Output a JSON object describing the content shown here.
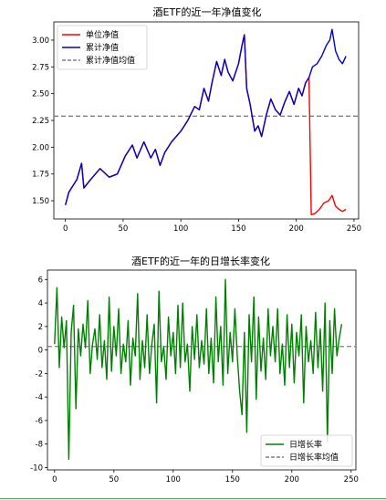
{
  "chart_data": [
    {
      "type": "line",
      "title": "酒ETF的近一年净值变化",
      "xlabel": "",
      "ylabel": "",
      "xlim": [
        -10,
        254
      ],
      "ylim": [
        1.33,
        3.17
      ],
      "x_ticks": [
        0,
        50,
        100,
        150,
        200,
        250
      ],
      "y_ticks": [
        1.5,
        1.75,
        2.0,
        2.25,
        2.5,
        2.75,
        3.0
      ],
      "legend_position": "upper-left",
      "grid": false,
      "hline": {
        "name": "累计净值均值",
        "value": 2.29,
        "color": "#808080",
        "dash": true
      },
      "series": [
        {
          "name": "单位净值",
          "color": "#ff0000",
          "keypoints": [
            [
              0,
              1.46
            ],
            [
              3,
              1.58
            ],
            [
              10,
              1.7
            ],
            [
              14,
              1.85
            ],
            [
              16,
              1.62
            ],
            [
              22,
              1.7
            ],
            [
              30,
              1.8
            ],
            [
              38,
              1.72
            ],
            [
              45,
              1.75
            ],
            [
              52,
              1.92
            ],
            [
              58,
              2.02
            ],
            [
              62,
              1.9
            ],
            [
              68,
              2.05
            ],
            [
              74,
              1.9
            ],
            [
              78,
              1.98
            ],
            [
              82,
              1.83
            ],
            [
              86,
              1.95
            ],
            [
              92,
              2.05
            ],
            [
              100,
              2.15
            ],
            [
              106,
              2.25
            ],
            [
              112,
              2.38
            ],
            [
              116,
              2.35
            ],
            [
              120,
              2.55
            ],
            [
              124,
              2.43
            ],
            [
              127,
              2.6
            ],
            [
              131,
              2.8
            ],
            [
              135,
              2.67
            ],
            [
              138,
              2.82
            ],
            [
              141,
              2.7
            ],
            [
              145,
              2.62
            ],
            [
              150,
              2.78
            ],
            [
              153,
              2.95
            ],
            [
              155,
              3.05
            ],
            [
              157,
              2.55
            ],
            [
              160,
              2.4
            ],
            [
              164,
              2.15
            ],
            [
              167,
              2.2
            ],
            [
              170,
              2.1
            ],
            [
              174,
              2.3
            ],
            [
              178,
              2.45
            ],
            [
              182,
              2.35
            ],
            [
              186,
              2.3
            ],
            [
              190,
              2.42
            ],
            [
              194,
              2.52
            ],
            [
              198,
              2.4
            ],
            [
              202,
              2.55
            ],
            [
              205,
              2.48
            ],
            [
              208,
              2.6
            ],
            [
              211,
              2.65
            ],
            [
              213,
              1.37
            ],
            [
              216,
              1.38
            ],
            [
              220,
              1.42
            ],
            [
              224,
              1.48
            ],
            [
              228,
              1.5
            ],
            [
              231,
              1.55
            ],
            [
              234,
              1.45
            ],
            [
              237,
              1.42
            ],
            [
              240,
              1.4
            ],
            [
              243,
              1.42
            ]
          ]
        },
        {
          "name": "累计净值",
          "color": "#0000cd",
          "keypoints": [
            [
              0,
              1.46
            ],
            [
              3,
              1.58
            ],
            [
              10,
              1.7
            ],
            [
              14,
              1.85
            ],
            [
              16,
              1.62
            ],
            [
              22,
              1.7
            ],
            [
              30,
              1.8
            ],
            [
              38,
              1.72
            ],
            [
              45,
              1.75
            ],
            [
              52,
              1.92
            ],
            [
              58,
              2.02
            ],
            [
              62,
              1.9
            ],
            [
              68,
              2.05
            ],
            [
              74,
              1.9
            ],
            [
              78,
              1.98
            ],
            [
              82,
              1.83
            ],
            [
              86,
              1.95
            ],
            [
              92,
              2.05
            ],
            [
              100,
              2.15
            ],
            [
              106,
              2.25
            ],
            [
              112,
              2.38
            ],
            [
              116,
              2.35
            ],
            [
              120,
              2.55
            ],
            [
              124,
              2.43
            ],
            [
              127,
              2.6
            ],
            [
              131,
              2.8
            ],
            [
              135,
              2.67
            ],
            [
              138,
              2.82
            ],
            [
              141,
              2.7
            ],
            [
              145,
              2.62
            ],
            [
              150,
              2.78
            ],
            [
              153,
              2.95
            ],
            [
              155,
              3.05
            ],
            [
              157,
              2.55
            ],
            [
              160,
              2.4
            ],
            [
              164,
              2.15
            ],
            [
              167,
              2.2
            ],
            [
              170,
              2.1
            ],
            [
              174,
              2.3
            ],
            [
              178,
              2.45
            ],
            [
              182,
              2.35
            ],
            [
              186,
              2.3
            ],
            [
              190,
              2.42
            ],
            [
              194,
              2.52
            ],
            [
              198,
              2.4
            ],
            [
              202,
              2.55
            ],
            [
              205,
              2.48
            ],
            [
              208,
              2.6
            ],
            [
              211,
              2.65
            ],
            [
              214,
              2.75
            ],
            [
              218,
              2.78
            ],
            [
              222,
              2.85
            ],
            [
              226,
              2.95
            ],
            [
              229,
              3.0
            ],
            [
              231,
              3.1
            ],
            [
              234,
              2.9
            ],
            [
              237,
              2.82
            ],
            [
              240,
              2.78
            ],
            [
              243,
              2.85
            ]
          ]
        }
      ]
    },
    {
      "type": "line",
      "title": "酒ETF的近一年的日增长率变化",
      "xlabel": "",
      "ylabel": "",
      "xlim": [
        -6,
        254
      ],
      "ylim": [
        -10.2,
        6.8
      ],
      "x_ticks": [
        0,
        50,
        100,
        150,
        200,
        250
      ],
      "y_ticks": [
        -10,
        -8,
        -6,
        -4,
        -2,
        0,
        2,
        4,
        6
      ],
      "legend_position": "lower-right",
      "grid": false,
      "hline": {
        "name": "日增长率均值",
        "value": 0.3,
        "color": "#808080",
        "dash": true
      },
      "series": [
        {
          "name": "日增长率",
          "color": "#008000",
          "keypoints": [
            [
              0,
              0.5
            ],
            [
              2,
              5.3
            ],
            [
              4,
              -1.5
            ],
            [
              6,
              2.8
            ],
            [
              8,
              0.2
            ],
            [
              10,
              2.5
            ],
            [
              12,
              -9.3
            ],
            [
              14,
              1.5
            ],
            [
              16,
              3.8
            ],
            [
              18,
              -5.0
            ],
            [
              20,
              1.8
            ],
            [
              22,
              -0.5
            ],
            [
              24,
              2.2
            ],
            [
              26,
              0.2
            ],
            [
              28,
              4.2
            ],
            [
              30,
              -2.0
            ],
            [
              32,
              0.5
            ],
            [
              34,
              1.8
            ],
            [
              36,
              -0.8
            ],
            [
              38,
              3.0
            ],
            [
              40,
              -1.5
            ],
            [
              42,
              0.8
            ],
            [
              44,
              -2.5
            ],
            [
              46,
              4.5
            ],
            [
              48,
              -1.8
            ],
            [
              50,
              2.0
            ],
            [
              52,
              -0.5
            ],
            [
              54,
              3.5
            ],
            [
              56,
              -2.0
            ],
            [
              58,
              0.5
            ],
            [
              60,
              -1.0
            ],
            [
              62,
              2.5
            ],
            [
              64,
              -3.0
            ],
            [
              66,
              1.0
            ],
            [
              68,
              -0.5
            ],
            [
              70,
              4.8
            ],
            [
              72,
              -2.5
            ],
            [
              74,
              0.8
            ],
            [
              76,
              -1.5
            ],
            [
              78,
              3.0
            ],
            [
              80,
              -2.0
            ],
            [
              82,
              0.5
            ],
            [
              84,
              2.2
            ],
            [
              86,
              -4.5
            ],
            [
              88,
              5.0
            ],
            [
              90,
              -1.0
            ],
            [
              92,
              0.3
            ],
            [
              94,
              -2.5
            ],
            [
              96,
              2.8
            ],
            [
              98,
              -0.5
            ],
            [
              100,
              1.5
            ],
            [
              102,
              -2.0
            ],
            [
              104,
              3.8
            ],
            [
              106,
              -1.5
            ],
            [
              108,
              4.0
            ],
            [
              110,
              -1.0
            ],
            [
              112,
              0.5
            ],
            [
              114,
              -3.5
            ],
            [
              116,
              2.0
            ],
            [
              118,
              -0.8
            ],
            [
              120,
              3.0
            ],
            [
              122,
              -1.5
            ],
            [
              124,
              0.8
            ],
            [
              126,
              -1.2
            ],
            [
              128,
              3.5
            ],
            [
              130,
              -2.0
            ],
            [
              132,
              1.0
            ],
            [
              134,
              -2.8
            ],
            [
              136,
              4.5
            ],
            [
              138,
              -1.0
            ],
            [
              140,
              2.0
            ],
            [
              142,
              -3.0
            ],
            [
              144,
              6.0
            ],
            [
              146,
              -2.0
            ],
            [
              148,
              1.5
            ],
            [
              150,
              -1.0
            ],
            [
              152,
              3.5
            ],
            [
              154,
              -0.5
            ],
            [
              156,
              -3.5
            ],
            [
              158,
              -5.5
            ],
            [
              160,
              1.5
            ],
            [
              162,
              -7.0
            ],
            [
              164,
              3.0
            ],
            [
              166,
              -1.0
            ],
            [
              168,
              4.5
            ],
            [
              170,
              -4.2
            ],
            [
              172,
              2.8
            ],
            [
              174,
              -1.8
            ],
            [
              176,
              1.0
            ],
            [
              178,
              -2.5
            ],
            [
              180,
              3.5
            ],
            [
              182,
              -0.5
            ],
            [
              184,
              2.0
            ],
            [
              186,
              -1.0
            ],
            [
              188,
              3.5
            ],
            [
              190,
              -2.0
            ],
            [
              192,
              0.5
            ],
            [
              194,
              -3.0
            ],
            [
              196,
              3.0
            ],
            [
              198,
              -1.5
            ],
            [
              200,
              2.2
            ],
            [
              202,
              -2.8
            ],
            [
              204,
              1.5
            ],
            [
              206,
              -0.5
            ],
            [
              208,
              3.0
            ],
            [
              210,
              -4.5
            ],
            [
              212,
              2.0
            ],
            [
              214,
              -1.0
            ],
            [
              216,
              0.8
            ],
            [
              218,
              -2.0
            ],
            [
              220,
              3.2
            ],
            [
              222,
              -1.5
            ],
            [
              224,
              1.8
            ],
            [
              226,
              -3.5
            ],
            [
              228,
              4.0
            ],
            [
              230,
              -7.8
            ],
            [
              232,
              2.5
            ],
            [
              234,
              -2.0
            ],
            [
              236,
              3.5
            ],
            [
              238,
              -0.5
            ],
            [
              240,
              1.0
            ],
            [
              242,
              2.2
            ]
          ]
        }
      ]
    }
  ]
}
